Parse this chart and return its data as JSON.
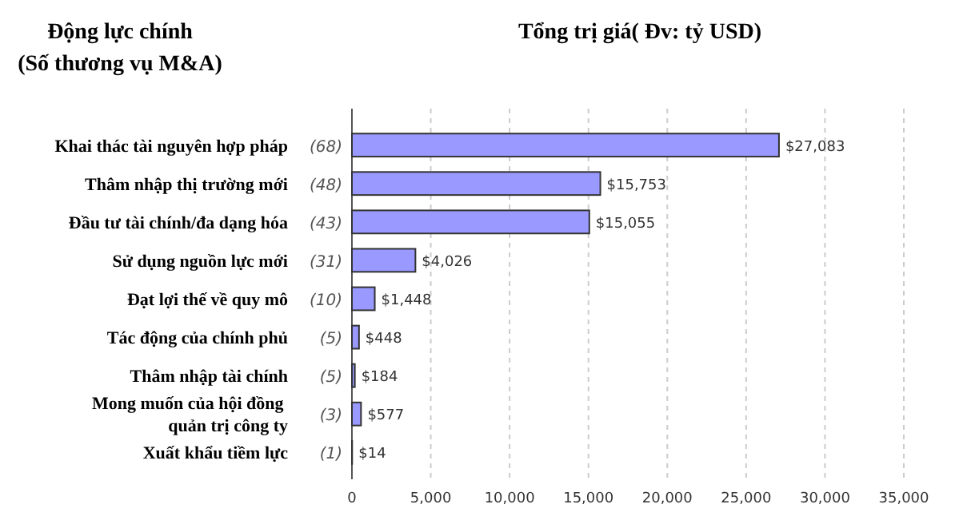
{
  "chart_data": {
    "type": "bar",
    "orientation": "horizontal",
    "title": "Tổng trị giá( Đv: tỷ USD)",
    "annotations": [
      "Động lực chính\n(Số thương vụ M&A)"
    ],
    "categories": [
      "Khai thác tài nguyên hợp pháp (68)",
      "Thâm nhập thị trường mới (48)",
      "Đầu tư tài chính/đa dạng hóa (43)",
      "Sử dụng nguồn lực mới (31)",
      "Đạt lợi thế về quy mô (10)",
      "Tác động của chính phủ (5)",
      "Thâm nhập tài chính (5)",
      "Mong muốn của hội đồng quản trị công ty (3)",
      "Xuất khẩu tiềm lực (1)"
    ],
    "values": [
      27083,
      15753,
      15055,
      4026,
      1448,
      448,
      184,
      577,
      14
    ],
    "value_labels": [
      "$27,083",
      "$15,753",
      "$15,055",
      "$4,026",
      "$1,448",
      "$448",
      "$184",
      "$577",
      "$14"
    ],
    "color": "#9999ff",
    "xlim": [
      0,
      35000
    ],
    "xticks": [
      0,
      {
        "value": 5000,
        "label": "5,000"
      },
      {
        "value": 10000,
        "label": "10,000"
      },
      {
        "value": 15000,
        "label": "15,000"
      },
      {
        "value": 20000,
        "label": "20,000"
      },
      {
        "value": 25000,
        "label": "25,000"
      },
      {
        "value": 30000,
        "label": "30,000"
      },
      {
        "value": 35000,
        "label": "35,000"
      }
    ],
    "grid": "x"
  }
}
